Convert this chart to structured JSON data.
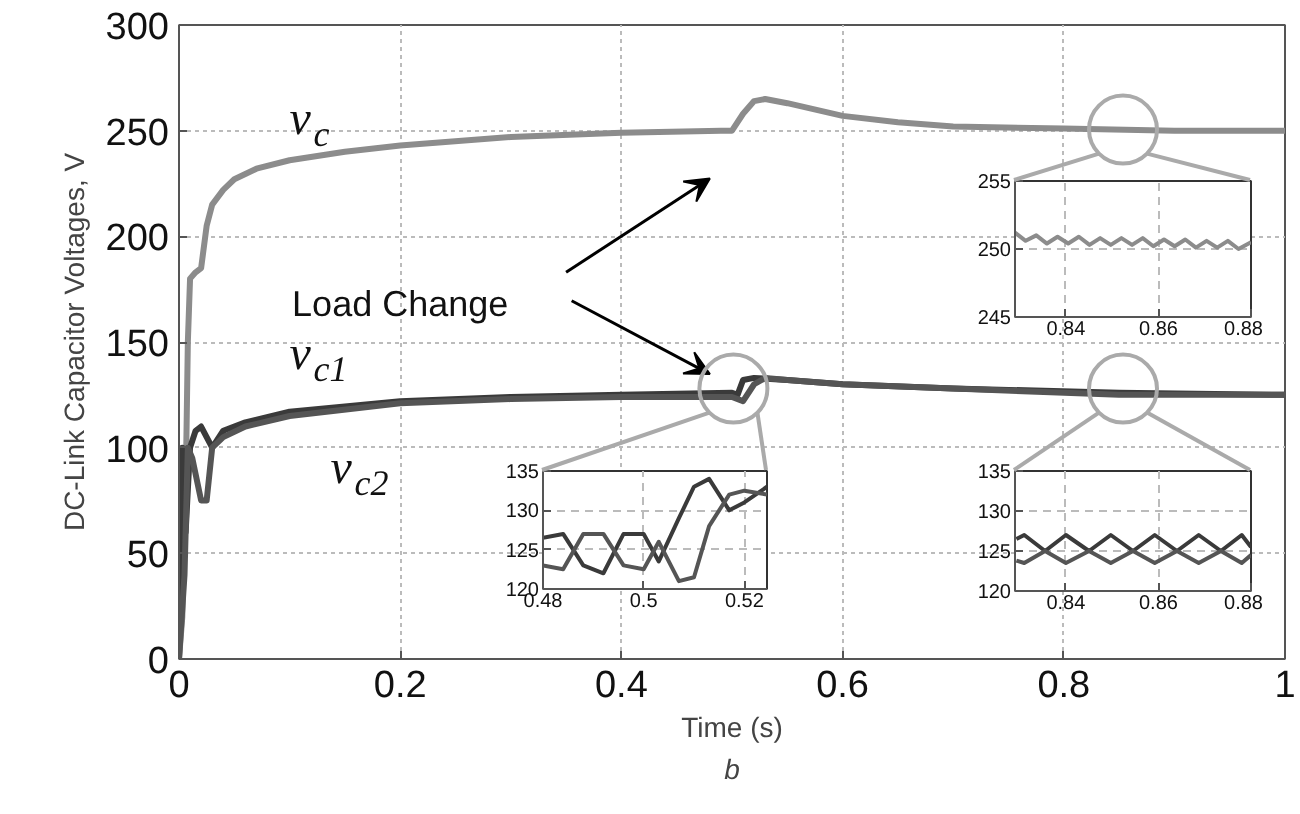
{
  "chart_data": [
    {
      "type": "line",
      "xlabel": "Time (s)",
      "ylabel": "DC-Link Capacitor Voltages, V",
      "xlim": [
        0,
        1
      ],
      "ylim": [
        0,
        300
      ],
      "xticks": [
        0,
        0.2,
        0.4,
        0.6,
        0.8,
        1
      ],
      "yticks": [
        0,
        50,
        100,
        150,
        200,
        250,
        300
      ],
      "grid": true,
      "annotations": [
        "Load Change",
        "b"
      ],
      "series": [
        {
          "name": "v$_{c}$",
          "color": "#8c8c8c",
          "x": [
            0,
            0.003,
            0.006,
            0.008,
            0.01,
            0.015,
            0.02,
            0.025,
            0.03,
            0.04,
            0.05,
            0.07,
            0.1,
            0.15,
            0.2,
            0.3,
            0.4,
            0.49,
            0.5,
            0.51,
            0.52,
            0.53,
            0.55,
            0.6,
            0.65,
            0.7,
            0.8,
            0.9,
            1.0
          ],
          "values": [
            0,
            20,
            80,
            150,
            180,
            183,
            185,
            205,
            215,
            222,
            227,
            232,
            236,
            240,
            243,
            247,
            249,
            250,
            250,
            258,
            264,
            265,
            263,
            257,
            254,
            252,
            251,
            250,
            250
          ]
        },
        {
          "name": "v$_{c1}$",
          "color": "#3a3a3a",
          "x": [
            0,
            0.003,
            0.006,
            0.01,
            0.015,
            0.02,
            0.025,
            0.03,
            0.04,
            0.06,
            0.1,
            0.2,
            0.3,
            0.4,
            0.5,
            0.505,
            0.51,
            0.52,
            0.55,
            0.6,
            0.7,
            0.85,
            1.0
          ],
          "values": [
            0,
            100,
            60,
            100,
            108,
            110,
            105,
            100,
            108,
            112,
            117,
            122,
            124,
            125,
            126,
            125,
            132,
            133,
            132,
            130,
            128,
            126,
            125
          ]
        },
        {
          "name": "v$_{c2}$",
          "color": "#555555",
          "x": [
            0,
            0.005,
            0.008,
            0.012,
            0.02,
            0.025,
            0.03,
            0.04,
            0.06,
            0.1,
            0.2,
            0.3,
            0.4,
            0.5,
            0.51,
            0.52,
            0.53,
            0.55,
            0.6,
            0.7,
            0.85,
            1.0
          ],
          "values": [
            0,
            40,
            100,
            95,
            75,
            75,
            100,
            105,
            110,
            115,
            121,
            123,
            124,
            124,
            122,
            130,
            133,
            132,
            130,
            128,
            125,
            125
          ]
        }
      ]
    },
    {
      "type": "line",
      "xlim": [
        0.829,
        0.88
      ],
      "ylim": [
        245,
        255
      ],
      "xticks": [
        0.84,
        0.86,
        0.88
      ],
      "yticks": [
        245,
        250,
        255
      ],
      "grid": true,
      "series": [
        {
          "color": "#8c8c8c",
          "x": [
            0.829,
            0.8313,
            0.8336,
            0.8359,
            0.8382,
            0.8405,
            0.8428,
            0.8451,
            0.8474,
            0.8497,
            0.852,
            0.8543,
            0.8566,
            0.8589,
            0.8612,
            0.8635,
            0.8658,
            0.8681,
            0.8704,
            0.8727,
            0.875,
            0.8773,
            0.88
          ],
          "values": [
            251.2,
            250.6,
            251.0,
            250.4,
            250.9,
            250.4,
            250.9,
            250.3,
            250.8,
            250.3,
            250.8,
            250.3,
            250.8,
            250.2,
            250.7,
            250.2,
            250.7,
            250.1,
            250.6,
            250.1,
            250.6,
            250.0,
            250.5
          ]
        }
      ]
    },
    {
      "type": "line",
      "xlim": [
        0.48,
        0.5245
      ],
      "ylim": [
        120,
        135
      ],
      "xticks": [
        0.48,
        0.5,
        0.52
      ],
      "yticks": [
        120,
        125,
        130,
        135
      ],
      "grid": true,
      "series": [
        {
          "color": "#3a3a3a",
          "x": [
            0.48,
            0.484,
            0.488,
            0.492,
            0.496,
            0.5,
            0.503,
            0.507,
            0.51,
            0.513,
            0.517,
            0.52,
            0.5245
          ],
          "values": [
            126.5,
            127,
            123,
            122,
            127,
            127,
            123.5,
            129,
            133,
            134,
            130,
            131,
            133
          ]
        },
        {
          "color": "#555555",
          "x": [
            0.48,
            0.484,
            0.488,
            0.492,
            0.496,
            0.5,
            0.503,
            0.507,
            0.51,
            0.513,
            0.517,
            0.52,
            0.5245
          ],
          "values": [
            123,
            122.5,
            127,
            127,
            123,
            122.5,
            126,
            121,
            121.5,
            128,
            132,
            132.5,
            132
          ]
        }
      ]
    },
    {
      "type": "line",
      "xlim": [
        0.829,
        0.88
      ],
      "ylim": [
        120,
        135
      ],
      "xticks": [
        0.84,
        0.86,
        0.88
      ],
      "yticks": [
        120,
        125,
        130,
        135
      ],
      "grid": true,
      "series": [
        {
          "color": "#3a3a3a",
          "x": [
            0.8293,
            0.831,
            0.8355,
            0.84,
            0.845,
            0.8497,
            0.8545,
            0.8592,
            0.864,
            0.8687,
            0.8735,
            0.878,
            0.88
          ],
          "values": [
            126.5,
            127,
            125,
            127,
            125,
            127,
            125,
            127,
            125,
            127,
            125,
            127,
            125.5
          ]
        },
        {
          "color": "#555555",
          "x": [
            0.8293,
            0.831,
            0.8355,
            0.84,
            0.845,
            0.8497,
            0.8545,
            0.8592,
            0.864,
            0.8687,
            0.8735,
            0.878,
            0.88
          ],
          "values": [
            123.8,
            123.5,
            125,
            123.5,
            125,
            123.5,
            125,
            123.5,
            125,
            123.5,
            125,
            123.5,
            124.5
          ]
        }
      ]
    }
  ]
}
